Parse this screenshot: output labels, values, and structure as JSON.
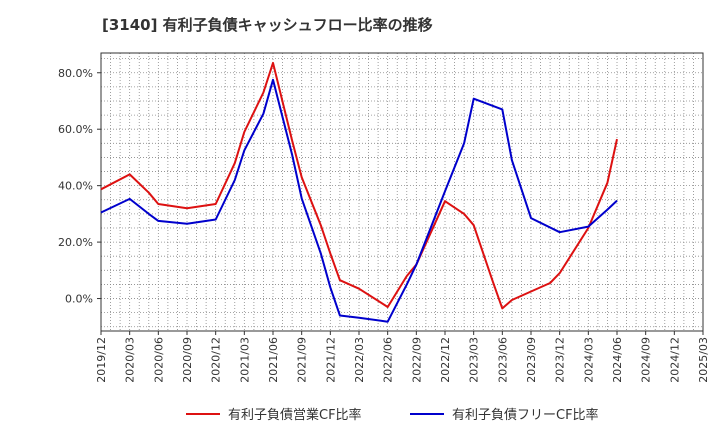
{
  "chart_data": {
    "type": "line",
    "title": "[3140]  有利子負債キャッシュフロー比率の推移",
    "x": [
      "2019/12",
      "2020/03",
      "2020/06",
      "2020/09",
      "2020/12",
      "2021/03",
      "2021/06",
      "2021/09",
      "2021/12",
      "2022/03",
      "2022/06",
      "2022/09",
      "2022/12",
      "2023/03",
      "2023/06",
      "2023/09",
      "2023/12",
      "2024/03",
      "2024/06",
      "2024/09",
      "2024/12",
      "2025/03"
    ],
    "y_ticks": [
      "0.0%",
      "20.0%",
      "40.0%",
      "60.0%",
      "80.0%"
    ],
    "ylim": [
      -11.5,
      87
    ],
    "grid": true,
    "legend_position": "bottom",
    "series": [
      {
        "name": "有利子負債営業CF比率",
        "color": "#dd1111",
        "points": [
          [
            "2019/12",
            38.7
          ],
          [
            "2020/03",
            44.0
          ],
          [
            "2020/05",
            37.5
          ],
          [
            "2020/06",
            33.5
          ],
          [
            "2020/09",
            32.0
          ],
          [
            "2020/12",
            33.5
          ],
          [
            "2021/02",
            48.0
          ],
          [
            "2021/03",
            59.0
          ],
          [
            "2021/05",
            73.0
          ],
          [
            "2021/06",
            83.5
          ],
          [
            "2021/08",
            56.0
          ],
          [
            "2021/09",
            43.0
          ],
          [
            "2021/11",
            26.0
          ],
          [
            "2021/12",
            16.0
          ],
          [
            "2022/01",
            6.5
          ],
          [
            "2022/03",
            3.5
          ],
          [
            "2022/06",
            -3.0
          ],
          [
            "2022/08",
            8.0
          ],
          [
            "2022/09",
            12.0
          ],
          [
            "2022/12",
            34.5
          ],
          [
            "2023/02",
            30.0
          ],
          [
            "2023/03",
            26.0
          ],
          [
            "2023/05",
            6.0
          ],
          [
            "2023/06",
            -3.5
          ],
          [
            "2023/07",
            -0.5
          ],
          [
            "2023/09",
            2.5
          ],
          [
            "2023/11",
            5.5
          ],
          [
            "2023/12",
            9.0
          ],
          [
            "2024/03",
            25.0
          ],
          [
            "2024/05",
            41.0
          ],
          [
            "2024/06",
            56.5
          ]
        ]
      },
      {
        "name": "有利子負債フリーCF比率",
        "color": "#0000cc",
        "points": [
          [
            "2019/12",
            30.5
          ],
          [
            "2020/03",
            35.3
          ],
          [
            "2020/05",
            30.0
          ],
          [
            "2020/06",
            27.5
          ],
          [
            "2020/09",
            26.5
          ],
          [
            "2020/12",
            28.0
          ],
          [
            "2021/02",
            42.0
          ],
          [
            "2021/03",
            52.5
          ],
          [
            "2021/05",
            65.5
          ],
          [
            "2021/06",
            77.5
          ],
          [
            "2021/08",
            51.0
          ],
          [
            "2021/09",
            35.5
          ],
          [
            "2021/11",
            16.0
          ],
          [
            "2021/12",
            4.0
          ],
          [
            "2022/01",
            -6.0
          ],
          [
            "2022/03",
            -6.8
          ],
          [
            "2022/06",
            -8.2
          ],
          [
            "2022/08",
            5.0
          ],
          [
            "2022/09",
            12.0
          ],
          [
            "2022/12",
            38.0
          ],
          [
            "2023/02",
            55.0
          ],
          [
            "2023/03",
            70.8
          ],
          [
            "2023/06",
            67.0
          ],
          [
            "2023/07",
            49.0
          ],
          [
            "2023/09",
            28.5
          ],
          [
            "2023/12",
            23.5
          ],
          [
            "2024/03",
            25.5
          ],
          [
            "2024/05",
            31.5
          ],
          [
            "2024/06",
            34.7
          ]
        ]
      }
    ]
  }
}
